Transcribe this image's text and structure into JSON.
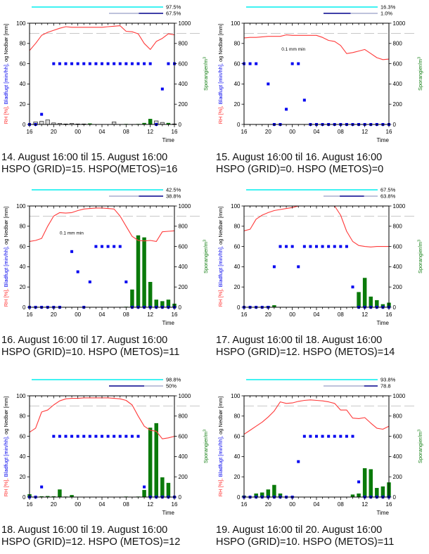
{
  "axes": {
    "left_label_parts": [
      {
        "text": "RH [%],",
        "color": "#FF2A2A"
      },
      {
        "text": " Bladfugt [min/hh],",
        "color": "#0000EE"
      },
      {
        "text": " og Nedbør [mm]",
        "color": "#000000"
      }
    ],
    "right_label_base": "Sporangier/m",
    "right_label_sup": "3",
    "right_label_color": "#0E7C0E",
    "x_label": "Time",
    "left_ticks": [
      "0",
      "20",
      "40",
      "60",
      "80",
      "100"
    ],
    "right_ticks": [
      "0",
      "200",
      "400",
      "600",
      "800",
      "1000"
    ],
    "x_tick_labels": [
      "16",
      "20",
      "00",
      "04",
      "08",
      "12",
      "16"
    ],
    "ref_line_value": 90
  },
  "colors": {
    "cyan": "#00EEEE",
    "navy": "#00008B",
    "lavender_gray": "#A9AECF",
    "rh_red": "#FF3A3A",
    "bladfugt_blue": "#0000F0",
    "sporangier_green": "#0A7A0A",
    "nedbar_fill": "#D9D9D9",
    "ref_gray": "#B5B5B5",
    "frame_black": "#000000"
  },
  "chart_data": [
    {
      "type": "combo",
      "caption_line1": "14. August 16:00 til 15. August 16:00",
      "caption_line2": "HSPO (GRID)=15. HSPO(METOS)=16",
      "legend_upper": {
        "label": "97.5%"
      },
      "legend_lower": {
        "label": "67.5%",
        "segments": [
          {
            "color": "#A9AECF",
            "from": 0,
            "to": 0.55
          },
          {
            "color": "#00008B",
            "from": 0.55,
            "to": 1
          }
        ]
      },
      "annotation": null,
      "series": {
        "rh": [
          73,
          80,
          88,
          91,
          93,
          95,
          96.5,
          96,
          96,
          96,
          96,
          96,
          96,
          96.5,
          97,
          97.5,
          92,
          91.5,
          89.5,
          80,
          74,
          82,
          85,
          89.5,
          88.5
        ],
        "bladfugt": [
          0,
          0,
          10,
          null,
          60,
          60,
          60,
          60,
          60,
          60,
          60,
          60,
          60,
          60,
          60,
          60,
          60,
          60,
          60,
          60,
          60,
          0,
          35,
          60,
          60
        ],
        "nedbar_mm": [
          0,
          2.5,
          3,
          4.5,
          1.5,
          1,
          0.5,
          1,
          0.5,
          0.5,
          0,
          0,
          0,
          0,
          2.5,
          0,
          0,
          0,
          0,
          0,
          0,
          3.5,
          2,
          0,
          0.5
        ],
        "sporangier": [
          0,
          0,
          0,
          0,
          0,
          0,
          0,
          0,
          0,
          0,
          10,
          0,
          0,
          0,
          0,
          0,
          5,
          0,
          5,
          15,
          55,
          0,
          0,
          15,
          0
        ]
      }
    },
    {
      "type": "combo",
      "caption_line1": "15. August 16:00 til 16. August 16:00",
      "caption_line2": "HSPO (GRID)=0. HSPO (METOS)=0",
      "legend_upper": {
        "label": "16.3%"
      },
      "legend_lower": {
        "label": "1.0%",
        "segments": [
          {
            "color": "#00008B",
            "from": 0,
            "to": 0.5
          },
          {
            "color": "#A9AECF",
            "from": 0.5,
            "to": 1
          }
        ]
      },
      "annotation": {
        "text": "0.1 mm min",
        "hour": 6.2,
        "value": 73
      },
      "series": {
        "rh": [
          85.5,
          86,
          86,
          86.5,
          87,
          87,
          87,
          88.5,
          88,
          88,
          88,
          88,
          88,
          86,
          83,
          82,
          78,
          70,
          71,
          72.5,
          74,
          70,
          66,
          64,
          64.5
        ],
        "bladfugt": [
          60,
          60,
          60,
          null,
          40,
          0,
          0,
          15,
          60,
          60,
          24,
          0,
          0,
          0,
          0,
          0,
          0,
          0,
          0,
          0,
          0,
          0,
          0,
          0,
          0
        ],
        "nedbar_mm": [
          0,
          0,
          0,
          0,
          0,
          0,
          0,
          0,
          0,
          0,
          0,
          0,
          0,
          0,
          0,
          0,
          0,
          0,
          0,
          0,
          0,
          0,
          0,
          0,
          0
        ],
        "sporangier": [
          0,
          0,
          0,
          0,
          0,
          0,
          0,
          0,
          0,
          0,
          0,
          0,
          0,
          0,
          0,
          0,
          0,
          0,
          0,
          0,
          0,
          0,
          0,
          0,
          0
        ]
      }
    },
    {
      "type": "combo",
      "caption_line1": "16. August 16:00 til 17. August 16:00",
      "caption_line2": "HSPO (GRID)=10. HSPO (METOS)=11",
      "legend_upper": {
        "label": "42.5%"
      },
      "legend_lower": {
        "label": "38.8%",
        "segments": [
          {
            "color": "#A9AECF",
            "from": 0,
            "to": 0.55
          },
          {
            "color": "#00008B",
            "from": 0.55,
            "to": 1
          }
        ]
      },
      "annotation": {
        "text": "0.1 mm min",
        "hour": 5.0,
        "value": 72
      },
      "series": {
        "rh": [
          65,
          66,
          68,
          80,
          90,
          93.5,
          93,
          93.5,
          95.5,
          97,
          97.5,
          98,
          98,
          97.5,
          97,
          90,
          80,
          70,
          66,
          65.5,
          66,
          65,
          74.5,
          75,
          75.5
        ],
        "bladfugt": [
          0,
          0,
          0,
          0,
          0,
          0,
          null,
          55,
          35,
          0,
          25,
          60,
          60,
          60,
          60,
          60,
          25,
          0,
          0,
          0,
          0,
          0,
          0,
          0,
          0
        ],
        "nedbar_mm": [
          0,
          0,
          0,
          0,
          0,
          0,
          0,
          0,
          0,
          0,
          0,
          0,
          0,
          0,
          0,
          0,
          0,
          0,
          0,
          0,
          0,
          0,
          0,
          0,
          0
        ],
        "sporangier": [
          0,
          0,
          0,
          0,
          0,
          0,
          0,
          0,
          0,
          0,
          0,
          0,
          0,
          0,
          0,
          0,
          5,
          175,
          710,
          690,
          250,
          75,
          60,
          75,
          35
        ]
      }
    },
    {
      "type": "combo",
      "caption_line1": "17. August 16:00 til 18. August 16:00",
      "caption_line2": "HSPO (GRID)=12. HSPO (METOS)=14",
      "legend_upper": {
        "label": "67.5%"
      },
      "legend_lower": {
        "label": "63.8%",
        "segments": [
          {
            "color": "#A9AECF",
            "from": 0,
            "to": 0.3
          },
          {
            "color": "#00008B",
            "from": 0.3,
            "to": 0.75
          },
          {
            "color": "#A9AECF",
            "from": 0.75,
            "to": 1
          }
        ]
      },
      "annotation": null,
      "series": {
        "rh": [
          75.5,
          77,
          87,
          91,
          93.5,
          95.5,
          96.5,
          97.5,
          98.5,
          100,
          100,
          100,
          100,
          100,
          100,
          100,
          91,
          75,
          65,
          61,
          60,
          59.5,
          60,
          60,
          60
        ],
        "bladfugt": [
          0,
          0,
          0,
          0,
          0,
          40,
          60,
          60,
          60,
          40,
          60,
          60,
          60,
          60,
          60,
          60,
          60,
          60,
          20,
          0,
          0,
          0,
          0,
          0,
          0
        ],
        "nedbar_mm": [
          0,
          0,
          0,
          0,
          0,
          0,
          0,
          0,
          0,
          0,
          0,
          0,
          0,
          0,
          0,
          0,
          0,
          0,
          0,
          0,
          0,
          0,
          0,
          0,
          0
        ],
        "sporangier": [
          0,
          0,
          0,
          0,
          10,
          20,
          0,
          0,
          0,
          0,
          0,
          0,
          0,
          0,
          0,
          0,
          0,
          0,
          5,
          150,
          290,
          105,
          70,
          30,
          45
        ]
      }
    },
    {
      "type": "combo",
      "caption_line1": "18. August 16:00 til 19. August 16:00",
      "caption_line2": "HSPO (GRID)=12. HSPO (METOS)=12",
      "legend_upper": {
        "label": "98.8%"
      },
      "legend_lower": {
        "label": "50%",
        "segments": [
          {
            "color": "#00008B",
            "from": 0,
            "to": 0.65
          },
          {
            "color": "#A9AECF",
            "from": 0.65,
            "to": 1
          }
        ]
      },
      "annotation": null,
      "series": {
        "rh": [
          64,
          68,
          84,
          86,
          91,
          95,
          97,
          97.5,
          97.5,
          98,
          98,
          98,
          98,
          98,
          97.5,
          97,
          95.5,
          91,
          80,
          70,
          66,
          65,
          57.5,
          58.5,
          60
        ],
        "bladfugt": [
          0,
          0,
          10,
          null,
          60,
          60,
          60,
          60,
          60,
          60,
          60,
          60,
          60,
          60,
          60,
          60,
          60,
          60,
          60,
          10,
          0,
          0,
          0,
          0,
          0
        ],
        "nedbar_mm": [
          0,
          0,
          0,
          0,
          0,
          0,
          0,
          0,
          0,
          0,
          0,
          0,
          0,
          0,
          0,
          0,
          0,
          0,
          0,
          0,
          0,
          0,
          0,
          0,
          0
        ],
        "sporangier": [
          28,
          3,
          8,
          10,
          8,
          75,
          5,
          20,
          0,
          0,
          0,
          0,
          0,
          3,
          0,
          0,
          5,
          0,
          5,
          70,
          685,
          730,
          195,
          140,
          0
        ]
      }
    },
    {
      "type": "combo",
      "caption_line1": "19. August 16:00 til 20. August 16:00",
      "caption_line2": "HSPO (GRID)=10. HSPO (METOS)=11",
      "legend_upper": {
        "label": "93.8%"
      },
      "legend_lower": {
        "label": "78.8",
        "segments": [
          {
            "color": "#A9AECF",
            "from": 0,
            "to": 0.75
          },
          {
            "color": "#00008B",
            "from": 0.75,
            "to": 1
          }
        ]
      },
      "annotation": null,
      "series": {
        "rh": [
          62,
          66,
          70,
          74,
          79,
          85,
          94,
          92.5,
          93,
          94.5,
          95.5,
          96,
          95.5,
          95,
          94,
          92.5,
          86,
          86,
          78,
          77.5,
          78.5,
          73,
          68,
          67,
          70
        ],
        "bladfugt": [
          0,
          0,
          0,
          0,
          0,
          0,
          0,
          0,
          0,
          35,
          60,
          60,
          60,
          60,
          60,
          60,
          60,
          60,
          60,
          15,
          0,
          0,
          0,
          0,
          0
        ],
        "nedbar_mm": [
          0,
          0,
          0,
          0,
          0,
          0,
          0,
          0,
          0,
          0,
          0,
          0,
          0,
          0,
          0,
          0,
          0,
          0,
          0,
          0,
          0,
          0,
          0,
          0,
          0
        ],
        "sporangier": [
          15,
          0,
          35,
          45,
          75,
          120,
          35,
          0,
          5,
          0,
          0,
          0,
          0,
          0,
          0,
          0,
          0,
          0,
          25,
          35,
          285,
          275,
          90,
          105,
          145
        ]
      }
    }
  ]
}
